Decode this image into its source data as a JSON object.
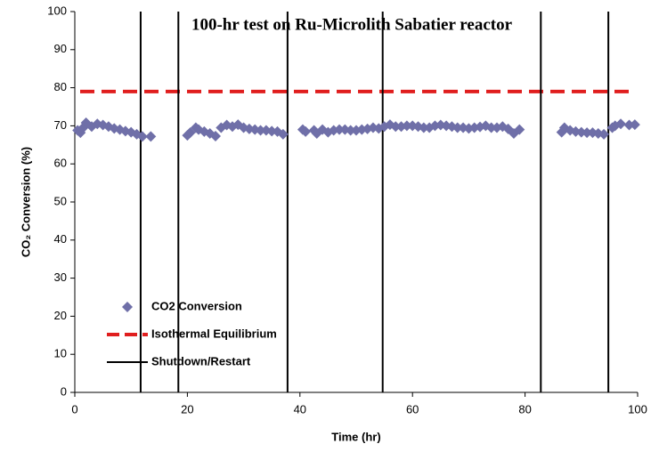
{
  "chart_data": {
    "type": "scatter",
    "title": "100-hr test on Ru-Microlith Sabatier reactor",
    "x_label": "Time (hr)",
    "y_label": "CO₂ Conversion (%)",
    "xlim": [
      0,
      100
    ],
    "xticks": [
      0,
      20,
      40,
      60,
      80,
      100
    ],
    "ylim": [
      0,
      100
    ],
    "yticks": [
      0,
      10,
      20,
      30,
      40,
      50,
      60,
      70,
      80,
      90,
      100
    ],
    "grid": false,
    "legend": "lower left",
    "series": [
      {
        "name": "CO2 Conversion",
        "color": "#6f6fa8",
        "x": [
          0.5,
          1,
          1.5,
          2,
          3,
          4,
          5,
          6,
          7,
          8,
          9,
          10,
          11,
          12,
          13.5,
          20,
          20.5,
          21.5,
          22,
          23,
          24,
          25,
          26,
          27,
          28,
          29,
          30,
          31,
          32,
          33,
          34,
          35,
          36,
          37,
          40.5,
          41,
          42.5,
          43,
          44,
          45,
          46,
          47,
          48,
          49,
          50,
          51,
          52,
          53,
          54,
          55,
          56,
          57,
          58,
          59,
          60,
          61,
          62,
          63,
          64,
          65,
          66,
          67,
          68,
          69,
          70,
          71,
          72,
          73,
          74,
          75,
          76,
          77,
          78,
          79,
          86.5,
          87,
          88,
          89,
          90,
          91,
          92,
          93,
          94,
          95.5,
          96,
          97,
          98.5,
          99.5
        ],
        "values": [
          68.8,
          68.2,
          69.5,
          70.8,
          69.8,
          70.5,
          70.2,
          69.8,
          69.3,
          69,
          68.6,
          68.3,
          67.8,
          67.2,
          67.2,
          67.5,
          68.2,
          69.5,
          69,
          68.5,
          68,
          67.3,
          69.5,
          70.2,
          69.8,
          70.3,
          69.5,
          69.2,
          69,
          68.8,
          68.8,
          68.6,
          68.5,
          67.8,
          69,
          68.5,
          68.8,
          68,
          69,
          68.3,
          68.8,
          69,
          69,
          68.8,
          68.8,
          69,
          69.2,
          69.5,
          69.3,
          69.8,
          70.3,
          69.8,
          69.8,
          70,
          70,
          69.8,
          69.5,
          69.5,
          70,
          70.2,
          70,
          69.8,
          69.5,
          69.5,
          69.3,
          69.5,
          69.7,
          70,
          69.5,
          69.5,
          69.8,
          69.2,
          68,
          69,
          68.3,
          69.5,
          68.8,
          68.5,
          68.3,
          68.2,
          68.2,
          68,
          67.8,
          69.5,
          70,
          70.5,
          70.2,
          70.3
        ]
      }
    ],
    "hline": {
      "name": "Isothermal Equilibrium",
      "value": 79,
      "color": "#e01e1e"
    },
    "vlines": {
      "name": "Shutdown/Restart",
      "color": "#000000",
      "values": [
        11.7,
        18.4,
        37.8,
        54.7,
        82.8,
        94.8
      ]
    }
  }
}
